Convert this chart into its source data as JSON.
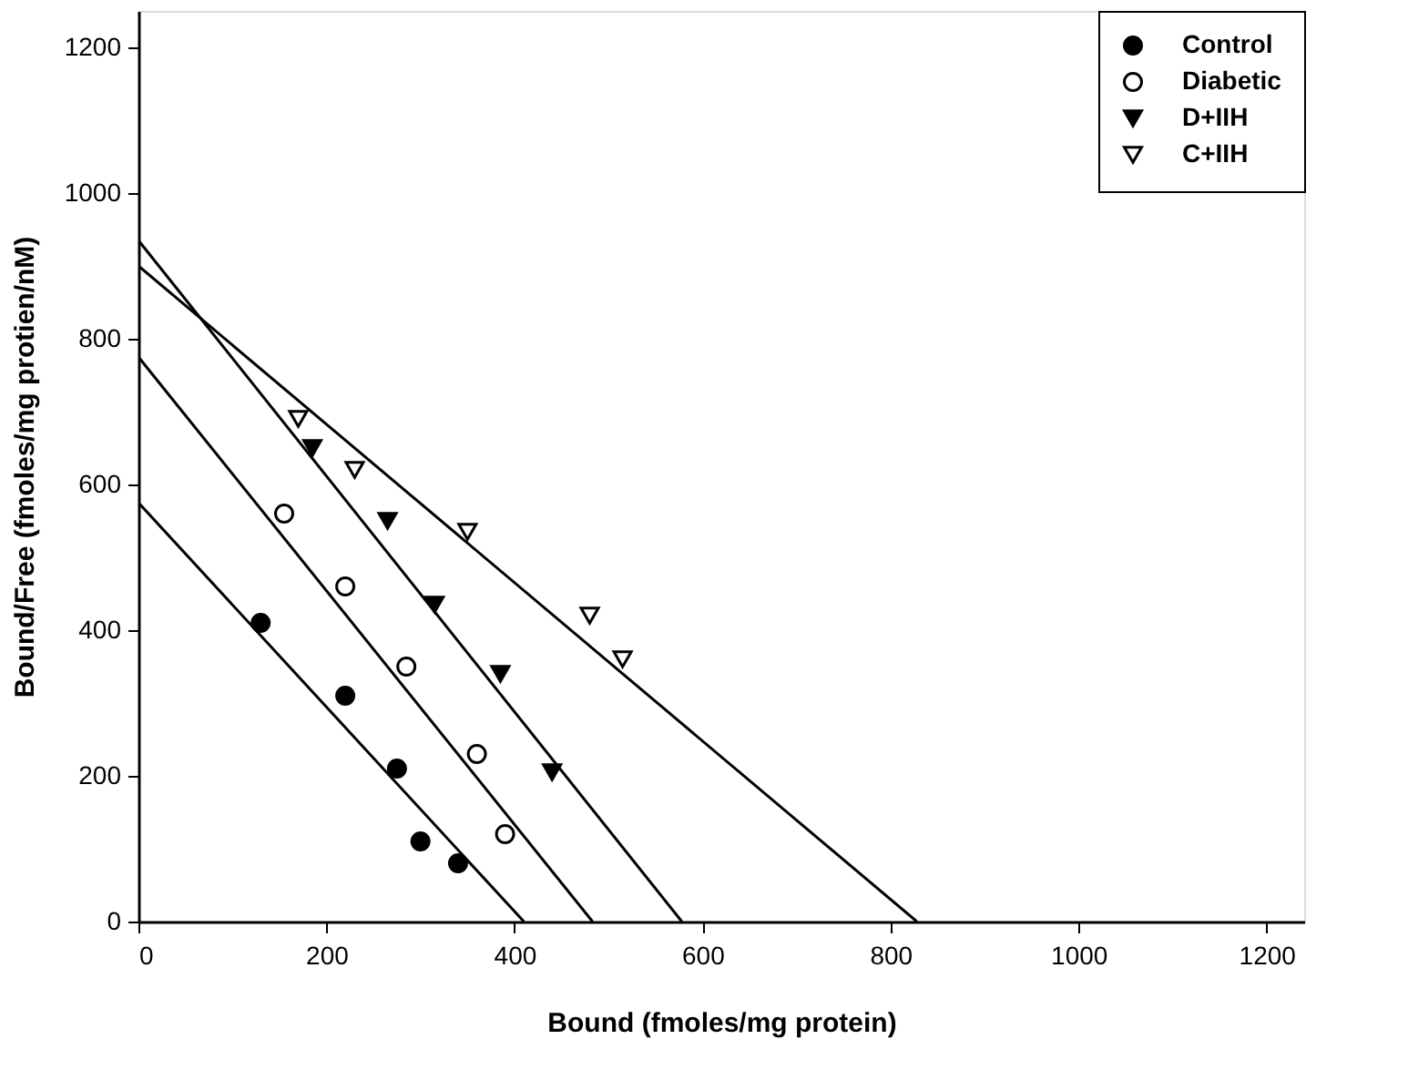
{
  "chart_data": {
    "type": "scatter",
    "xlabel": "Bound (fmoles/mg protein)",
    "ylabel": "Bound/Free (fmoles/mg protien/nM)",
    "xlim": [
      0,
      1240
    ],
    "ylim": [
      0,
      1250
    ],
    "xticks": [
      0,
      200,
      400,
      600,
      800,
      1000,
      1200
    ],
    "yticks": [
      0,
      200,
      400,
      600,
      800,
      1000,
      1200
    ],
    "grid": false,
    "legend": "top right",
    "series": [
      {
        "name": "Control",
        "color": "#000000",
        "marker": "circle",
        "x": [
          130,
          220,
          275,
          300,
          340
        ],
        "values": [
          410,
          310,
          210,
          110,
          80
        ]
      },
      {
        "name": "Diabetic",
        "color": "#000000",
        "marker": "circle-open",
        "x": [
          155,
          220,
          285,
          360,
          390
        ],
        "values": [
          560,
          460,
          350,
          230,
          120
        ]
      },
      {
        "name": "D+IIH",
        "color": "#000000",
        "marker": "triangle-down",
        "x": [
          185,
          265,
          315,
          385,
          440
        ],
        "values": [
          650,
          550,
          435,
          340,
          205
        ]
      },
      {
        "name": "C+IIH",
        "color": "#000000",
        "marker": "triangle-down-open",
        "x": [
          170,
          230,
          350,
          480,
          515
        ],
        "values": [
          690,
          620,
          535,
          420,
          360
        ]
      },
      {
        "type": "line",
        "color": "#000000",
        "x": [
          0,
          410
        ],
        "values": [
          575,
          0
        ]
      },
      {
        "type": "line",
        "color": "#000000",
        "x": [
          0,
          483
        ],
        "values": [
          775,
          0
        ]
      },
      {
        "type": "line",
        "color": "#000000",
        "x": [
          0,
          578
        ],
        "values": [
          935,
          0
        ]
      },
      {
        "type": "line",
        "color": "#000000",
        "x": [
          0,
          828
        ],
        "values": [
          900,
          0
        ]
      }
    ]
  }
}
